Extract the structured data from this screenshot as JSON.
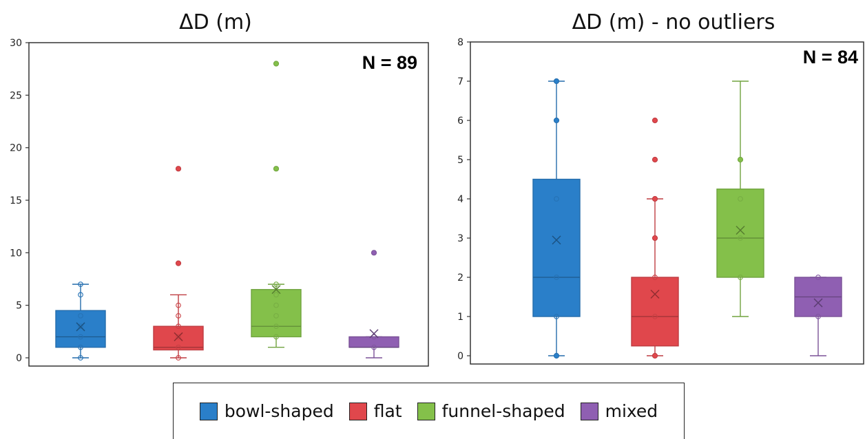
{
  "colors": {
    "bowl-shaped": "#2a7fc9",
    "flat": "#e0474c",
    "funnel-shaped": "#84c04a",
    "mixed": "#8f5fb2"
  },
  "legend": {
    "placement": "bottom-center",
    "items": [
      {
        "label": "bowl-shaped",
        "color": "#2a7fc9"
      },
      {
        "label": "flat",
        "color": "#e0474c"
      },
      {
        "label": "funnel-shaped",
        "color": "#84c04a"
      },
      {
        "label": "mixed",
        "color": "#8f5fb2"
      }
    ]
  },
  "chart_data": [
    {
      "type": "box",
      "title": "ΔD (m)",
      "annotation": "N = 89",
      "ylim": [
        0,
        30
      ],
      "yticks": [
        0,
        5,
        10,
        15,
        20,
        25,
        30
      ],
      "grid": false,
      "categories": [
        "bowl-shaped",
        "flat",
        "funnel-shaped",
        "mixed"
      ],
      "boxes": [
        {
          "category": "bowl-shaped",
          "min": 0,
          "q1": 1,
          "median": 2,
          "q3": 4.5,
          "max": 7,
          "mean": 2.95,
          "outliers": [],
          "points": [
            0,
            1,
            2,
            3,
            4,
            6,
            7
          ]
        },
        {
          "category": "flat",
          "min": 0,
          "q1": 0.75,
          "median": 1,
          "q3": 3,
          "max": 6,
          "mean": 2,
          "outliers": [
            9,
            18
          ],
          "points": [
            0,
            1,
            2,
            3,
            4,
            5
          ]
        },
        {
          "category": "funnel-shaped",
          "min": 1,
          "q1": 2,
          "median": 3,
          "q3": 6.5,
          "max": 7,
          "mean": 6.5,
          "outliers": [
            18,
            28
          ],
          "points": [
            2,
            3,
            4,
            5,
            6,
            7
          ]
        },
        {
          "category": "mixed",
          "min": 0,
          "q1": 1,
          "median": 1,
          "q3": 2,
          "max": 2,
          "mean": 2.3,
          "outliers": [
            10
          ],
          "points": [
            1,
            2
          ]
        }
      ]
    },
    {
      "type": "box",
      "title": "ΔD (m) - no outliers",
      "annotation": "N = 84",
      "ylim": [
        0,
        8
      ],
      "yticks": [
        0,
        1,
        2,
        3,
        4,
        5,
        6,
        7,
        8
      ],
      "grid": false,
      "categories": [
        "bowl-shaped",
        "flat",
        "funnel-shaped",
        "mixed"
      ],
      "boxes": [
        {
          "category": "bowl-shaped",
          "min": 0,
          "q1": 1,
          "median": 2,
          "q3": 4.5,
          "max": 7,
          "mean": 2.95,
          "outliers": [
            0,
            6,
            7
          ],
          "points": [
            1,
            2,
            4
          ]
        },
        {
          "category": "flat",
          "min": 0,
          "q1": 0.25,
          "median": 1,
          "q3": 2,
          "max": 4,
          "mean": 1.57,
          "outliers": [
            0,
            3,
            4,
            5,
            6
          ],
          "points": [
            1,
            2
          ]
        },
        {
          "category": "funnel-shaped",
          "min": 1,
          "q1": 2,
          "median": 3,
          "q3": 4.25,
          "max": 7,
          "mean": 3.2,
          "outliers": [
            5
          ],
          "points": [
            2,
            3,
            4
          ]
        },
        {
          "category": "mixed",
          "min": 0,
          "q1": 1,
          "median": 1.5,
          "q3": 2,
          "max": 2,
          "mean": 1.35,
          "outliers": [],
          "points": [
            1,
            2
          ]
        }
      ]
    }
  ]
}
